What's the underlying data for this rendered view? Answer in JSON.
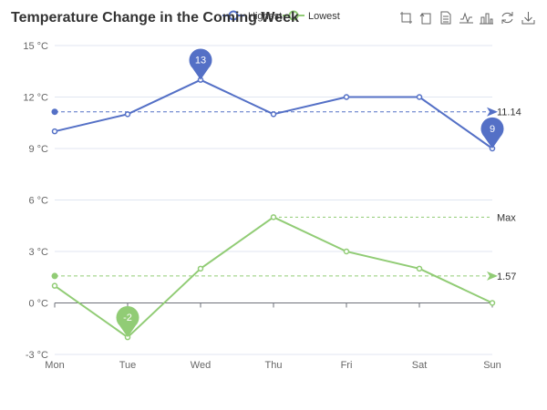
{
  "chart_data": {
    "type": "line",
    "title": "Temperature Change in the Coming Week",
    "categories": [
      "Mon",
      "Tue",
      "Wed",
      "Thu",
      "Fri",
      "Sat",
      "Sun"
    ],
    "ylim": [
      -3,
      15
    ],
    "yticks": [
      -3,
      0,
      3,
      6,
      9,
      12,
      15
    ],
    "y_unit": "°C",
    "grid": true,
    "legend": "top",
    "series": [
      {
        "name": "Highest",
        "color": "#5470c6",
        "values": [
          10,
          11,
          13,
          11,
          12,
          12,
          9
        ],
        "mark_points": [
          {
            "type": "max",
            "category": "Wed",
            "value": 13,
            "label": "13"
          },
          {
            "type": "min",
            "category": "Sun",
            "value": 9,
            "label": "9"
          }
        ],
        "mark_lines": [
          {
            "type": "average",
            "value": 11.14,
            "label": "11.14"
          }
        ]
      },
      {
        "name": "Lowest",
        "color": "#91cc75",
        "values": [
          1,
          -2,
          2,
          5,
          3,
          2,
          0
        ],
        "mark_points": [
          {
            "type": "min",
            "category": "Tue",
            "value": -2,
            "label": "-2"
          }
        ],
        "mark_lines": [
          {
            "type": "average",
            "value": 1.57,
            "label": "1.57"
          },
          {
            "type": "max",
            "value": 5,
            "from_category": "Thu",
            "label": "Max"
          }
        ]
      }
    ]
  },
  "toolbox": {
    "icons": [
      "zoom-icon",
      "zoom-reset-icon",
      "data-view-icon",
      "line-chart-icon",
      "bar-chart-icon",
      "restore-icon",
      "download-icon"
    ]
  }
}
